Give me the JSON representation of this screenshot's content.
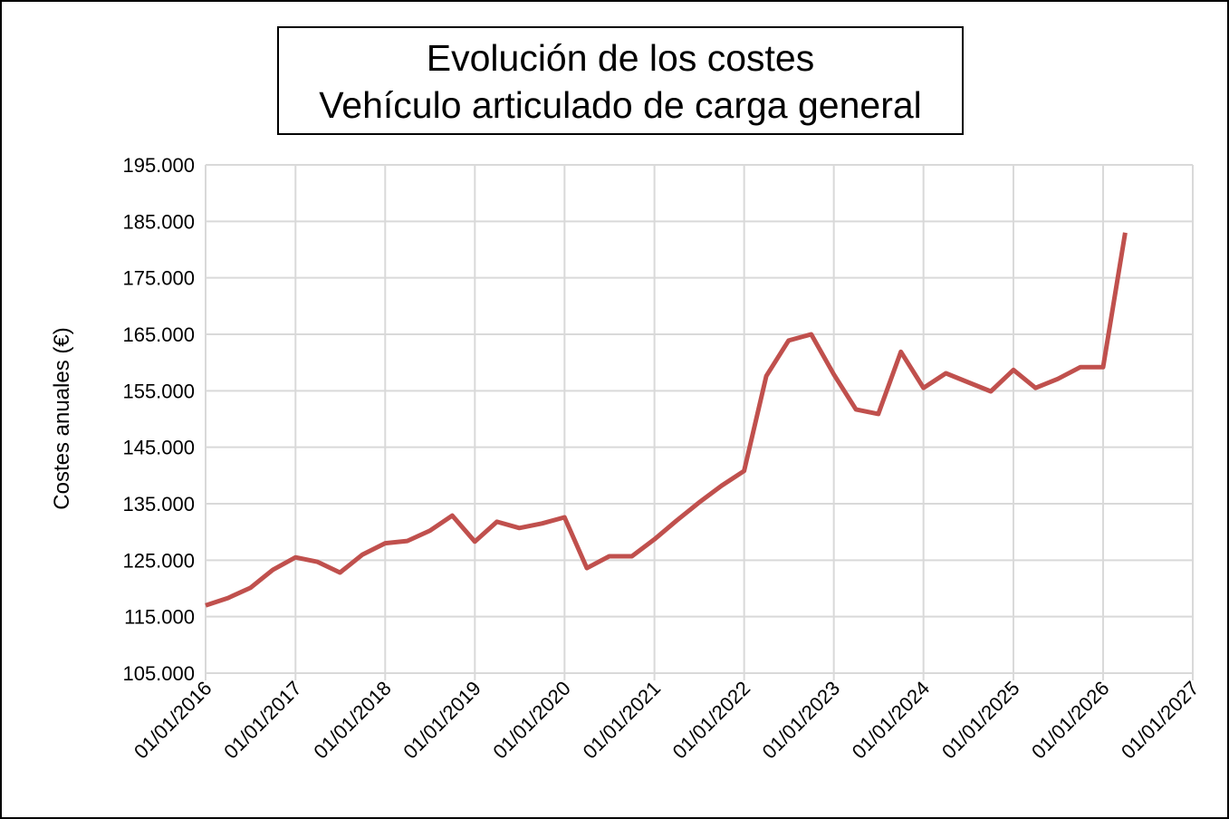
{
  "chart_data": {
    "type": "line",
    "title": "Evolución de los costes",
    "subtitle": "Vehículo articulado de carga general",
    "y_label": "Costes anuales  (€)",
    "x": [
      "2016-01-01",
      "2016-04-01",
      "2016-07-01",
      "2016-10-01",
      "2017-01-01",
      "2017-04-01",
      "2017-07-01",
      "2017-10-01",
      "2018-01-01",
      "2018-04-01",
      "2018-07-01",
      "2018-10-01",
      "2019-01-01",
      "2019-04-01",
      "2019-07-01",
      "2019-10-01",
      "2020-01-01",
      "2020-04-01",
      "2020-07-01",
      "2020-10-01",
      "2021-01-01",
      "2021-04-01",
      "2021-07-01",
      "2021-10-01",
      "2022-01-01",
      "2022-04-01",
      "2022-07-01",
      "2022-10-01",
      "2023-01-01",
      "2023-04-01",
      "2023-07-01",
      "2023-10-01",
      "2024-01-01",
      "2024-04-01",
      "2024-07-01",
      "2024-10-01",
      "2025-01-01",
      "2025-04-01",
      "2025-07-01",
      "2025-10-01",
      "2026-01-01",
      "2026-04-01"
    ],
    "series": [
      {
        "name": "Costes anuales",
        "color": "#c0504d",
        "values": [
          117000,
          118300,
          120100,
          123300,
          125500,
          124700,
          122800,
          126000,
          128000,
          128400,
          130200,
          132900,
          128300,
          131800,
          130700,
          131500,
          132600,
          123600,
          125700,
          125700,
          128700,
          132000,
          135200,
          138200,
          140800,
          157600,
          163900,
          165000,
          157900,
          151700,
          150900,
          161900,
          155500,
          158100,
          156500,
          154900,
          158700,
          155500,
          157100,
          159200,
          159200,
          183000
        ]
      }
    ],
    "xlim": [
      "2016-01-01",
      "2027-01-01"
    ],
    "xticks": [
      {
        "value": "2016-01-01",
        "label": "01/01/2016"
      },
      {
        "value": "2017-01-01",
        "label": "01/01/2017"
      },
      {
        "value": "2018-01-01",
        "label": "01/01/2018"
      },
      {
        "value": "2019-01-01",
        "label": "01/01/2019"
      },
      {
        "value": "2020-01-01",
        "label": "01/01/2020"
      },
      {
        "value": "2021-01-01",
        "label": "01/01/2021"
      },
      {
        "value": "2022-01-01",
        "label": "01/01/2022"
      },
      {
        "value": "2023-01-01",
        "label": "01/01/2023"
      },
      {
        "value": "2024-01-01",
        "label": "01/01/2024"
      },
      {
        "value": "2025-01-01",
        "label": "01/01/2025"
      },
      {
        "value": "2026-01-01",
        "label": "01/01/2026"
      },
      {
        "value": "2027-01-01",
        "label": "01/01/2027"
      }
    ],
    "ylim": [
      105000,
      195000
    ],
    "yticks": [
      {
        "value": 105000,
        "label": "105.000"
      },
      {
        "value": 115000,
        "label": "115.000"
      },
      {
        "value": 125000,
        "label": "125.000"
      },
      {
        "value": 135000,
        "label": "135.000"
      },
      {
        "value": 145000,
        "label": "145.000"
      },
      {
        "value": 155000,
        "label": "155.000"
      },
      {
        "value": 165000,
        "label": "165.000"
      },
      {
        "value": 175000,
        "label": "175.000"
      },
      {
        "value": 185000,
        "label": "185.000"
      },
      {
        "value": 195000,
        "label": "195.000"
      }
    ],
    "grid": true
  }
}
